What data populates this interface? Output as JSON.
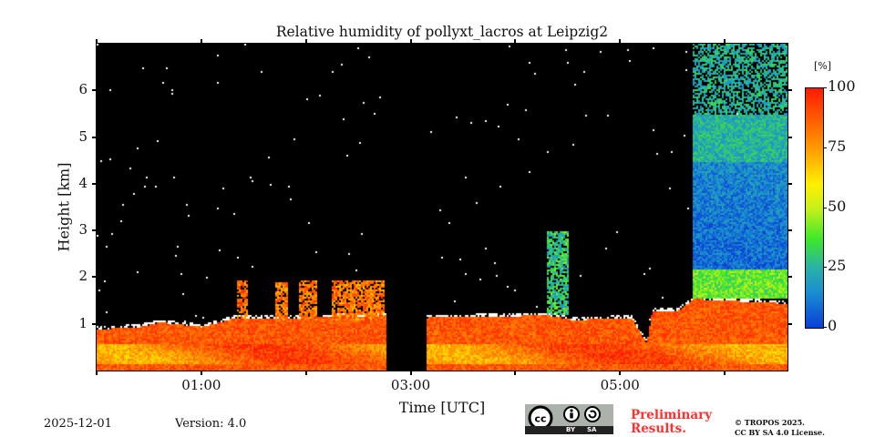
{
  "chart_data": {
    "type": "heatmap",
    "title": "Relative humidity of pollyxt_lacros at Leipzig2",
    "xlabel": "Time [UTC]",
    "ylabel": "Height [km]",
    "xlim_hours": [
      0,
      6.6
    ],
    "ylim_km": [
      0,
      7
    ],
    "x_tick_labels": [
      {
        "hour": 1,
        "label": "01:00"
      },
      {
        "hour": 3,
        "label": "03:00"
      },
      {
        "hour": 5,
        "label": "05:00"
      }
    ],
    "x_minor_ticks_hours": [
      0,
      2,
      4,
      6
    ],
    "y_ticks": [
      {
        "km": 1,
        "label": "1"
      },
      {
        "km": 2,
        "label": "2"
      },
      {
        "km": 3,
        "label": "3"
      },
      {
        "km": 4,
        "label": "4"
      },
      {
        "km": 5,
        "label": "5"
      },
      {
        "km": 6,
        "label": "6"
      }
    ],
    "colorbar": {
      "unit": "[%]",
      "range": [
        0,
        100
      ],
      "ticks": [
        {
          "v": 0,
          "label": "0"
        },
        {
          "v": 25,
          "label": "25"
        },
        {
          "v": 50,
          "label": "50"
        },
        {
          "v": 75,
          "label": "75"
        },
        {
          "v": 100,
          "label": "100"
        }
      ],
      "colormap_stops": [
        [
          0,
          "#0a3fd6"
        ],
        [
          15,
          "#1a8fd0"
        ],
        [
          25,
          "#2bb0a8"
        ],
        [
          37,
          "#3ee82a"
        ],
        [
          50,
          "#c8f01a"
        ],
        [
          60,
          "#fff000"
        ],
        [
          75,
          "#ff9a00"
        ],
        [
          100,
          "#ff1a00"
        ]
      ]
    },
    "boundary_layer_top_km": [
      [
        0,
        0.9
      ],
      [
        0.4,
        0.95
      ],
      [
        0.6,
        1.05
      ],
      [
        1.0,
        0.95
      ],
      [
        1.33,
        1.15
      ],
      [
        2.0,
        1.15
      ],
      [
        2.75,
        1.2
      ],
      [
        3.15,
        1.15
      ],
      [
        4.3,
        1.2
      ],
      [
        4.55,
        1.1
      ],
      [
        5.1,
        1.15
      ],
      [
        5.25,
        0.6
      ],
      [
        5.3,
        1.3
      ],
      [
        5.55,
        1.3
      ],
      [
        5.7,
        1.55
      ],
      [
        6.6,
        1.45
      ]
    ],
    "boundary_layer_rh_percent": 88,
    "no_data_intervals_hours": [
      [
        2.76,
        3.14
      ]
    ],
    "cloud_columns": [
      {
        "t0": 1.33,
        "t1": 1.43,
        "base_km": 1.1,
        "top_km": 1.95,
        "rh": 85
      },
      {
        "t0": 1.7,
        "t1": 1.82,
        "base_km": 1.1,
        "top_km": 1.9,
        "rh": 80
      },
      {
        "t0": 1.93,
        "t1": 2.1,
        "base_km": 1.1,
        "top_km": 1.95,
        "rh": 82
      },
      {
        "t0": 2.23,
        "t1": 2.75,
        "base_km": 1.1,
        "top_km": 1.95,
        "rh": 82
      },
      {
        "t0": 4.3,
        "t1": 4.5,
        "base_km": 1.2,
        "top_km": 3.0,
        "rh": 30
      }
    ],
    "free_troposphere_moist_layer": {
      "t0": 5.68,
      "t1": 6.6,
      "base_km": 1.55,
      "top_km": 7.0,
      "rh_lower": 40,
      "rh_middle": 10,
      "rh_upper": 25
    }
  },
  "footer": {
    "date": "2025-12-01",
    "version": "Version: 4.0",
    "preliminary": [
      "Preliminary",
      "Results."
    ],
    "copyright": [
      "© TROPOS 2025.",
      "CC BY SA 4.0 License."
    ],
    "license_badge": {
      "by": "BY",
      "sa": "SA",
      "cc": "cc"
    }
  }
}
